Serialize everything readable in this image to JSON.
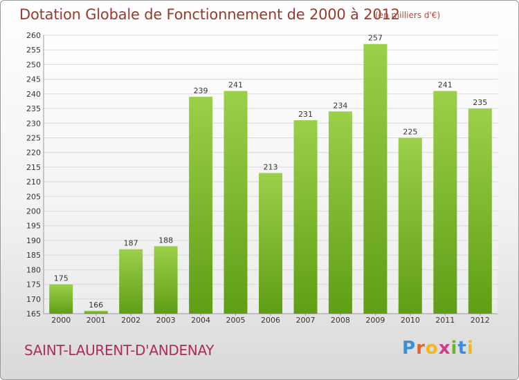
{
  "header": {
    "title": "Dotation Globale de Fonctionnement de 2000 à 2012",
    "subtitle": "(en milliers d'€)"
  },
  "footer": {
    "commune": "SAINT-LAURENT-D'ANDENAY",
    "logo_letters": [
      "P",
      "r",
      "o",
      "x",
      "i",
      "t",
      "i"
    ],
    "logo_colors": [
      "#3a8fd8",
      "#e8622a",
      "#f2b81c",
      "#d63a8c",
      "#6cb52e",
      "#3a8fd8",
      "#f2b81c"
    ]
  },
  "chart_data": {
    "type": "bar",
    "title": "Dotation Globale de Fonctionnement de 2000 à 2012",
    "categories": [
      "2000",
      "2001",
      "2002",
      "2003",
      "2004",
      "2005",
      "2006",
      "2007",
      "2008",
      "2009",
      "2010",
      "2011",
      "2012"
    ],
    "values": [
      175,
      166,
      187,
      188,
      239,
      241,
      213,
      231,
      234,
      257,
      225,
      241,
      235
    ],
    "ylim": [
      165,
      260
    ],
    "ytick_step": 5,
    "grid": true,
    "bar_color_top": "#9ccf4a",
    "bar_color_bottom": "#5f9e16"
  }
}
